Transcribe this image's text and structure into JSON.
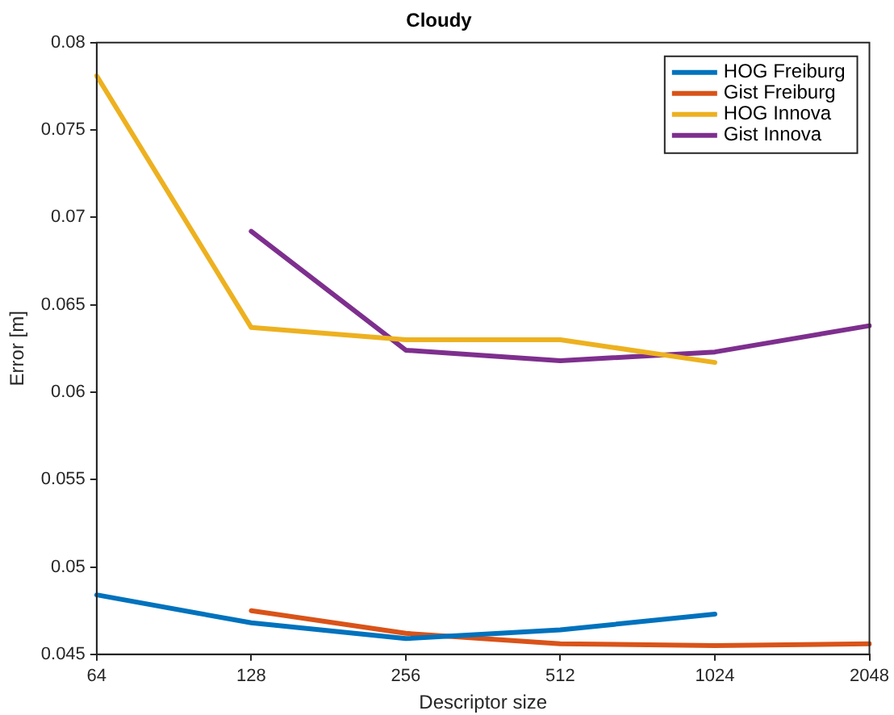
{
  "chart_data": {
    "type": "line",
    "title": "Cloudy",
    "xlabel": "Descriptor size",
    "ylabel": "Error [m]",
    "categories": [
      "64",
      "128",
      "256",
      "512",
      "1024",
      "2048"
    ],
    "series": [
      {
        "name": "HOG Freiburg",
        "color": "#0072bd",
        "values": [
          0.0484,
          0.0468,
          0.0459,
          0.0464,
          0.0473,
          null
        ]
      },
      {
        "name": "Gist Freiburg",
        "color": "#d95319",
        "values": [
          null,
          0.0475,
          0.0462,
          0.0456,
          0.0455,
          0.0456
        ]
      },
      {
        "name": "HOG Innova",
        "color": "#edb120",
        "values": [
          0.0781,
          0.0637,
          0.063,
          0.063,
          0.0617,
          null
        ]
      },
      {
        "name": "Gist Innova",
        "color": "#7e2f8e",
        "values": [
          null,
          0.0692,
          0.0624,
          0.0618,
          0.0623,
          0.0638
        ]
      }
    ],
    "ylim": [
      0.045,
      0.08
    ],
    "yticks": [
      0.045,
      0.05,
      0.055,
      0.06,
      0.065,
      0.07,
      0.075,
      0.08
    ],
    "grid": false,
    "legend": "top right",
    "marker": "none",
    "line_style": "solid"
  }
}
